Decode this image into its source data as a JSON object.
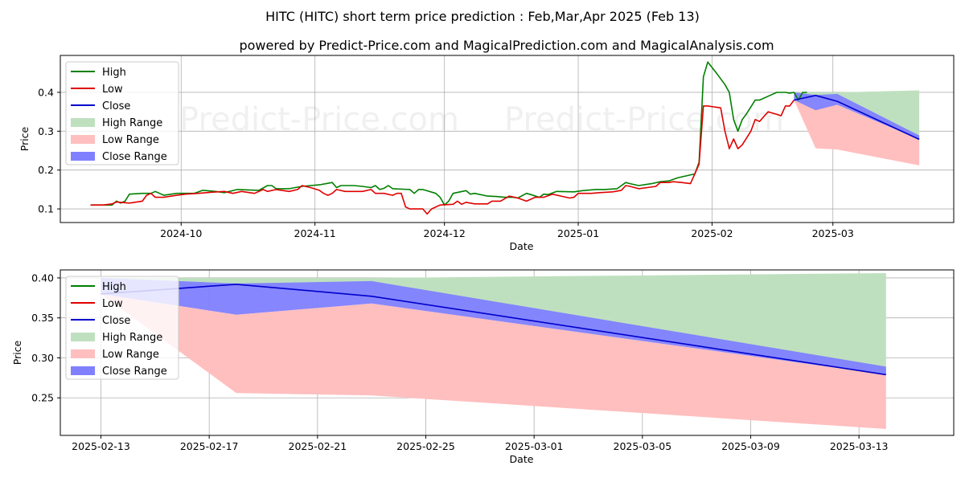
{
  "header": {
    "title": "HITC (HITC) short term price prediction : Feb,Mar,Apr 2025 (Feb 13)",
    "subtitle": "powered by Predict-Price.com and MagicalPrediction.com and MagicalAnalysis.com"
  },
  "watermark": "Predict-Price.com",
  "colors": {
    "high": "#008000",
    "low": "#e00000",
    "close": "#0000cc",
    "high_range": "#bfe0bf",
    "low_range": "#ffbfbf",
    "close_range": "#8080ff"
  },
  "chart_data": [
    {
      "type": "line",
      "title": "",
      "xlabel": "Date",
      "ylabel": "Price",
      "x_ticks": [
        {
          "label": "2024-10",
          "x": 15
        },
        {
          "label": "2024-11",
          "x": 46
        },
        {
          "label": "2024-12",
          "x": 76
        },
        {
          "label": "2025-01",
          "x": 107
        },
        {
          "label": "2025-02",
          "x": 138
        },
        {
          "label": "2025-03",
          "x": 166
        }
      ],
      "y_ticks": [
        0.1,
        0.2,
        0.3,
        0.4
      ],
      "xlim": [
        -13,
        194
      ],
      "ylim": [
        0.065,
        0.495
      ],
      "legend": [
        "High",
        "Low",
        "Close",
        "High Range",
        "Low Range",
        "Close Range"
      ],
      "series": [
        {
          "name": "High",
          "points": [
            [
              -6,
              0.11
            ],
            [
              -3,
              0.11
            ],
            [
              -1,
              0.11
            ],
            [
              0,
              0.12
            ],
            [
              1,
              0.115
            ],
            [
              2,
              0.12
            ],
            [
              3,
              0.138
            ],
            [
              6,
              0.14
            ],
            [
              8,
              0.14
            ],
            [
              9,
              0.145
            ],
            [
              10,
              0.14
            ],
            [
              11,
              0.135
            ],
            [
              14,
              0.14
            ],
            [
              18,
              0.14
            ],
            [
              20,
              0.148
            ],
            [
              23,
              0.145
            ],
            [
              25,
              0.142
            ],
            [
              28,
              0.15
            ],
            [
              33,
              0.148
            ],
            [
              35,
              0.16
            ],
            [
              36,
              0.16
            ],
            [
              37,
              0.152
            ],
            [
              40,
              0.152
            ],
            [
              43,
              0.158
            ],
            [
              45,
              0.16
            ],
            [
              47,
              0.162
            ],
            [
              50,
              0.168
            ],
            [
              51,
              0.155
            ],
            [
              52,
              0.16
            ],
            [
              55,
              0.16
            ],
            [
              57,
              0.158
            ],
            [
              59,
              0.155
            ],
            [
              60,
              0.16
            ],
            [
              61,
              0.15
            ],
            [
              62,
              0.153
            ],
            [
              63,
              0.16
            ],
            [
              64,
              0.152
            ],
            [
              68,
              0.15
            ],
            [
              69,
              0.14
            ],
            [
              70,
              0.15
            ],
            [
              71,
              0.15
            ],
            [
              74,
              0.14
            ],
            [
              75,
              0.13
            ],
            [
              76,
              0.11
            ],
            [
              77,
              0.12
            ],
            [
              78,
              0.14
            ],
            [
              81,
              0.147
            ],
            [
              82,
              0.138
            ],
            [
              83,
              0.14
            ],
            [
              86,
              0.133
            ],
            [
              88,
              0.132
            ],
            [
              90,
              0.13
            ],
            [
              92,
              0.13
            ],
            [
              93,
              0.128
            ],
            [
              95,
              0.14
            ],
            [
              96,
              0.137
            ],
            [
              98,
              0.13
            ],
            [
              99,
              0.138
            ],
            [
              100,
              0.137
            ],
            [
              102,
              0.145
            ],
            [
              106,
              0.144
            ],
            [
              108,
              0.147
            ],
            [
              111,
              0.15
            ],
            [
              113,
              0.15
            ],
            [
              116,
              0.152
            ],
            [
              118,
              0.168
            ],
            [
              119,
              0.165
            ],
            [
              121,
              0.16
            ],
            [
              124,
              0.165
            ],
            [
              126,
              0.17
            ],
            [
              128,
              0.172
            ],
            [
              130,
              0.18
            ],
            [
              134,
              0.19
            ],
            [
              135,
              0.22
            ],
            [
              136,
              0.44
            ],
            [
              137,
              0.478
            ],
            [
              139,
              0.45
            ],
            [
              141,
              0.42
            ],
            [
              142,
              0.4
            ],
            [
              143,
              0.33
            ],
            [
              144,
              0.3
            ],
            [
              145,
              0.33
            ],
            [
              146,
              0.345
            ],
            [
              148,
              0.38
            ],
            [
              149,
              0.38
            ],
            [
              151,
              0.39
            ],
            [
              153,
              0.4
            ],
            [
              155,
              0.4
            ],
            [
              156,
              0.398
            ],
            [
              157,
              0.4
            ],
            [
              158,
              0.38
            ],
            [
              159,
              0.4
            ],
            [
              160,
              0.4
            ]
          ]
        },
        {
          "name": "Low",
          "points": [
            [
              -6,
              0.11
            ],
            [
              -3,
              0.11
            ],
            [
              -1,
              0.113
            ],
            [
              0,
              0.118
            ],
            [
              3,
              0.115
            ],
            [
              6,
              0.12
            ],
            [
              7,
              0.135
            ],
            [
              8,
              0.14
            ],
            [
              9,
              0.13
            ],
            [
              11,
              0.13
            ],
            [
              14,
              0.135
            ],
            [
              16,
              0.138
            ],
            [
              19,
              0.14
            ],
            [
              22,
              0.143
            ],
            [
              25,
              0.145
            ],
            [
              27,
              0.14
            ],
            [
              29,
              0.145
            ],
            [
              32,
              0.14
            ],
            [
              34,
              0.15
            ],
            [
              35,
              0.145
            ],
            [
              37,
              0.15
            ],
            [
              40,
              0.145
            ],
            [
              42,
              0.15
            ],
            [
              43,
              0.16
            ],
            [
              45,
              0.155
            ],
            [
              47,
              0.148
            ],
            [
              48,
              0.14
            ],
            [
              49,
              0.135
            ],
            [
              50,
              0.14
            ],
            [
              51,
              0.15
            ],
            [
              53,
              0.145
            ],
            [
              57,
              0.145
            ],
            [
              59,
              0.15
            ],
            [
              60,
              0.14
            ],
            [
              62,
              0.14
            ],
            [
              64,
              0.135
            ],
            [
              65,
              0.14
            ],
            [
              66,
              0.14
            ],
            [
              67,
              0.105
            ],
            [
              68,
              0.1
            ],
            [
              70,
              0.1
            ],
            [
              71,
              0.1
            ],
            [
              72,
              0.087
            ],
            [
              73,
              0.1
            ],
            [
              75,
              0.11
            ],
            [
              78,
              0.112
            ],
            [
              79,
              0.12
            ],
            [
              80,
              0.112
            ],
            [
              81,
              0.117
            ],
            [
              83,
              0.113
            ],
            [
              86,
              0.113
            ],
            [
              87,
              0.12
            ],
            [
              89,
              0.12
            ],
            [
              91,
              0.133
            ],
            [
              93,
              0.128
            ],
            [
              95,
              0.12
            ],
            [
              97,
              0.13
            ],
            [
              99,
              0.13
            ],
            [
              101,
              0.138
            ],
            [
              103,
              0.133
            ],
            [
              105,
              0.128
            ],
            [
              106,
              0.13
            ],
            [
              107,
              0.14
            ],
            [
              110,
              0.14
            ],
            [
              112,
              0.142
            ],
            [
              115,
              0.144
            ],
            [
              117,
              0.148
            ],
            [
              118,
              0.16
            ],
            [
              119,
              0.158
            ],
            [
              121,
              0.152
            ],
            [
              123,
              0.155
            ],
            [
              125,
              0.158
            ],
            [
              126,
              0.168
            ],
            [
              128,
              0.168
            ],
            [
              129,
              0.17
            ],
            [
              131,
              0.168
            ],
            [
              133,
              0.165
            ],
            [
              134,
              0.19
            ],
            [
              135,
              0.215
            ],
            [
              136,
              0.365
            ],
            [
              137,
              0.365
            ],
            [
              140,
              0.36
            ],
            [
              141,
              0.3
            ],
            [
              142,
              0.255
            ],
            [
              143,
              0.28
            ],
            [
              144,
              0.255
            ],
            [
              145,
              0.265
            ],
            [
              147,
              0.3
            ],
            [
              148,
              0.33
            ],
            [
              149,
              0.325
            ],
            [
              151,
              0.35
            ],
            [
              154,
              0.34
            ],
            [
              155,
              0.365
            ],
            [
              156,
              0.365
            ],
            [
              157,
              0.38
            ]
          ]
        },
        {
          "name": "Close",
          "points": [
            [
              157,
              0.38
            ],
            [
              162,
              0.392
            ],
            [
              167,
              0.377
            ],
            [
              186,
              0.279
            ]
          ]
        }
      ],
      "ranges": [
        {
          "name": "High Range",
          "x": [
            157,
            162,
            167,
            186
          ],
          "upper": [
            0.4,
            0.4,
            0.4,
            0.405
          ],
          "lower": [
            0.38,
            0.392,
            0.377,
            0.279
          ]
        },
        {
          "name": "Low Range",
          "x": [
            157,
            162,
            167,
            186
          ],
          "upper": [
            0.38,
            0.356,
            0.368,
            0.279
          ],
          "lower": [
            0.38,
            0.256,
            0.253,
            0.212
          ]
        },
        {
          "name": "Close Range",
          "x": [
            157,
            162,
            167,
            186
          ],
          "upper": [
            0.4,
            0.393,
            0.396,
            0.289
          ],
          "lower": [
            0.38,
            0.354,
            0.368,
            0.279
          ]
        }
      ]
    },
    {
      "type": "line",
      "title": "",
      "xlabel": "Date",
      "ylabel": "Price",
      "x_ticks": [
        {
          "label": "2025-02-13",
          "x": 0
        },
        {
          "label": "2025-02-17",
          "x": 4
        },
        {
          "label": "2025-02-21",
          "x": 8
        },
        {
          "label": "2025-02-25",
          "x": 12
        },
        {
          "label": "2025-03-01",
          "x": 16
        },
        {
          "label": "2025-03-05",
          "x": 20
        },
        {
          "label": "2025-03-09",
          "x": 24
        },
        {
          "label": "2025-03-13",
          "x": 28
        }
      ],
      "y_ticks": [
        0.25,
        0.3,
        0.35,
        0.4
      ],
      "y_tick_labels": [
        "0.25",
        "0.30",
        "0.35",
        "0.40"
      ],
      "xlim": [
        -1.5,
        31.5
      ],
      "ylim": [
        0.203,
        0.41
      ],
      "legend": [
        "High",
        "Low",
        "Close",
        "High Range",
        "Low Range",
        "Close Range"
      ],
      "series": [
        {
          "name": "Close",
          "points": [
            [
              0,
              0.38
            ],
            [
              5,
              0.392
            ],
            [
              10,
              0.377
            ],
            [
              29,
              0.279
            ]
          ]
        }
      ],
      "ranges": [
        {
          "name": "High Range",
          "x": [
            0,
            5,
            10,
            29
          ],
          "upper": [
            0.4,
            0.4,
            0.4,
            0.406
          ],
          "lower": [
            0.38,
            0.392,
            0.377,
            0.279
          ]
        },
        {
          "name": "Low Range",
          "x": [
            0,
            5,
            10,
            29
          ],
          "upper": [
            0.38,
            0.354,
            0.368,
            0.279
          ],
          "lower": [
            0.38,
            0.256,
            0.253,
            0.211
          ]
        },
        {
          "name": "Close Range",
          "x": [
            0,
            5,
            10,
            29
          ],
          "upper": [
            0.4,
            0.393,
            0.396,
            0.289
          ],
          "lower": [
            0.38,
            0.354,
            0.368,
            0.279
          ]
        }
      ]
    }
  ]
}
